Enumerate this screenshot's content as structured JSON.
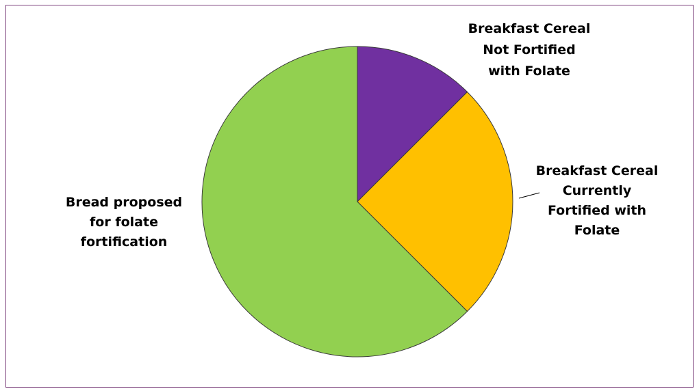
{
  "chart_data": {
    "type": "pie",
    "title": "",
    "slices": [
      {
        "label_lines": [
          "Breakfast Cereal",
          "Not Fortified",
          "with Folate"
        ],
        "value": 12.5,
        "color": "#7030a0"
      },
      {
        "label_lines": [
          "Breakfast Cereal",
          "Currently",
          "Fortified with",
          "Folate"
        ],
        "value": 25,
        "color": "#ffc000"
      },
      {
        "label_lines": [
          "Bread proposed",
          "for folate",
          "fortification"
        ],
        "value": 62.5,
        "color": "#92d050"
      }
    ],
    "start_angle_deg": 0,
    "direction": "clockwise",
    "legend": "none"
  }
}
